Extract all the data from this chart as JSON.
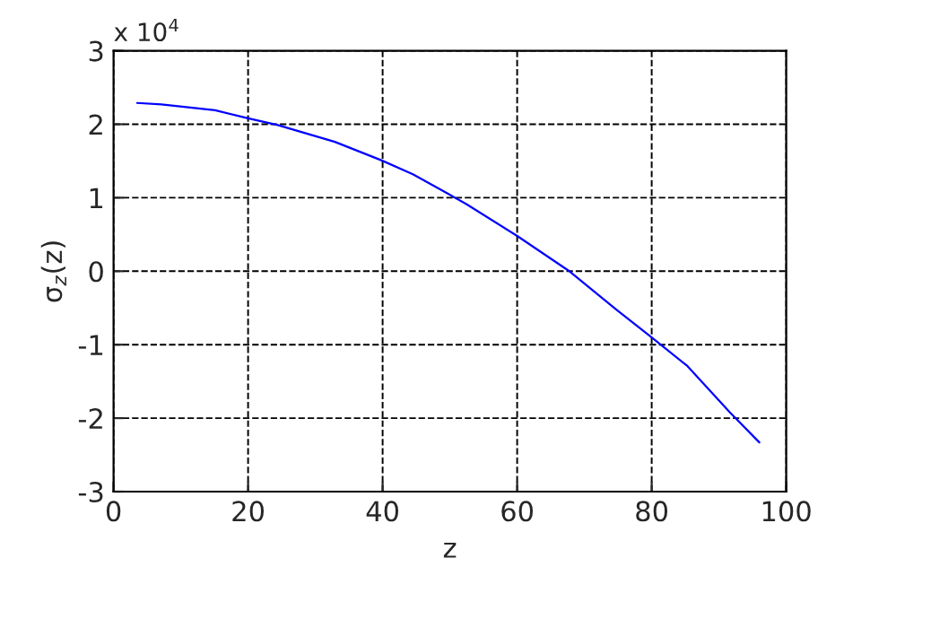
{
  "chart_data": {
    "type": "line",
    "xlabel": "z",
    "ylabel": "σ$_{z}$(z)",
    "annotations": [
      "x 10$^{4}$"
    ],
    "x": [
      3.5,
      7.1,
      15.1,
      20,
      24.4,
      32.9,
      39.8,
      44.5,
      49.8,
      52.5,
      60,
      67.6,
      74.7,
      80,
      85.3,
      91.6,
      96
    ],
    "series": [
      {
        "color": "#0000ff",
        "values": [
          2.29,
          2.27,
          2.19,
          2.08,
          1.99,
          1.76,
          1.51,
          1.32,
          1.05,
          0.91,
          0.48,
          0.01,
          -0.52,
          -0.9,
          -1.29,
          -1.92,
          -2.33
        ]
      }
    ],
    "xlim": [
      0,
      100
    ],
    "xticks": [
      0,
      20,
      40,
      60,
      80,
      100
    ],
    "ylim": [
      -3,
      3
    ],
    "yticks": [
      -3,
      -2,
      -1,
      0,
      1,
      2,
      3
    ],
    "grid": true,
    "line_style": "solid",
    "marker": "none"
  }
}
